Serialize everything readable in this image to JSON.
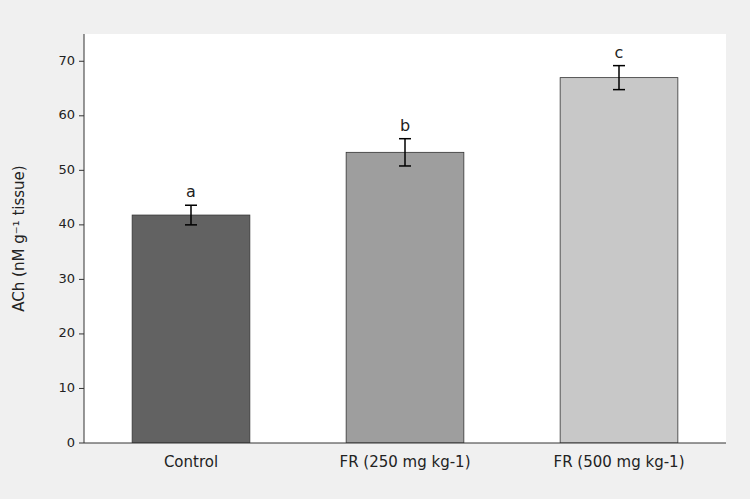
{
  "chart_data": {
    "type": "bar",
    "categories": [
      "Control",
      "FR (250 mg kg-1)",
      "FR (500 mg kg-1)"
    ],
    "values": [
      41.8,
      53.3,
      67.0
    ],
    "errors": [
      1.8,
      2.5,
      2.2
    ],
    "colors": [
      "#626262",
      "#9e9e9e",
      "#c8c8c8"
    ],
    "annotations": [
      "a",
      "b",
      "c"
    ],
    "ylabel": "ACh (nM g⁻¹ tissue)",
    "ylim": [
      0,
      75
    ],
    "yticks": [
      0,
      10,
      20,
      30,
      40,
      50,
      60,
      70
    ],
    "grid": false
  }
}
